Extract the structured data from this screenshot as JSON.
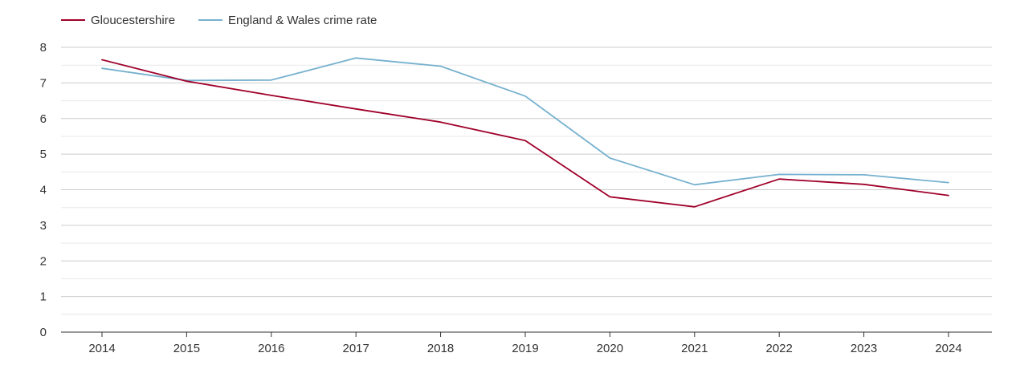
{
  "chart_data": {
    "type": "line",
    "title": "",
    "xlabel": "",
    "ylabel": "",
    "categories": [
      "2014",
      "2015",
      "2016",
      "2017",
      "2018",
      "2019",
      "2020",
      "2021",
      "2022",
      "2023",
      "2024"
    ],
    "ylim": [
      0,
      8
    ],
    "y_ticks": [
      "0",
      "1",
      "2",
      "3",
      "4",
      "5",
      "6",
      "7",
      "8"
    ],
    "grid": true,
    "legend_position": "top-left",
    "series": [
      {
        "name": "Gloucestershire",
        "color": "#a0002a",
        "values": [
          7.65,
          7.05,
          6.65,
          6.27,
          5.9,
          5.38,
          3.8,
          3.52,
          4.3,
          4.15,
          3.84
        ]
      },
      {
        "name": "England & Wales crime rate",
        "color": "#76b1cf",
        "values": [
          7.41,
          7.07,
          7.08,
          7.7,
          7.47,
          6.63,
          4.89,
          4.14,
          4.43,
          4.42,
          4.2
        ]
      }
    ]
  }
}
